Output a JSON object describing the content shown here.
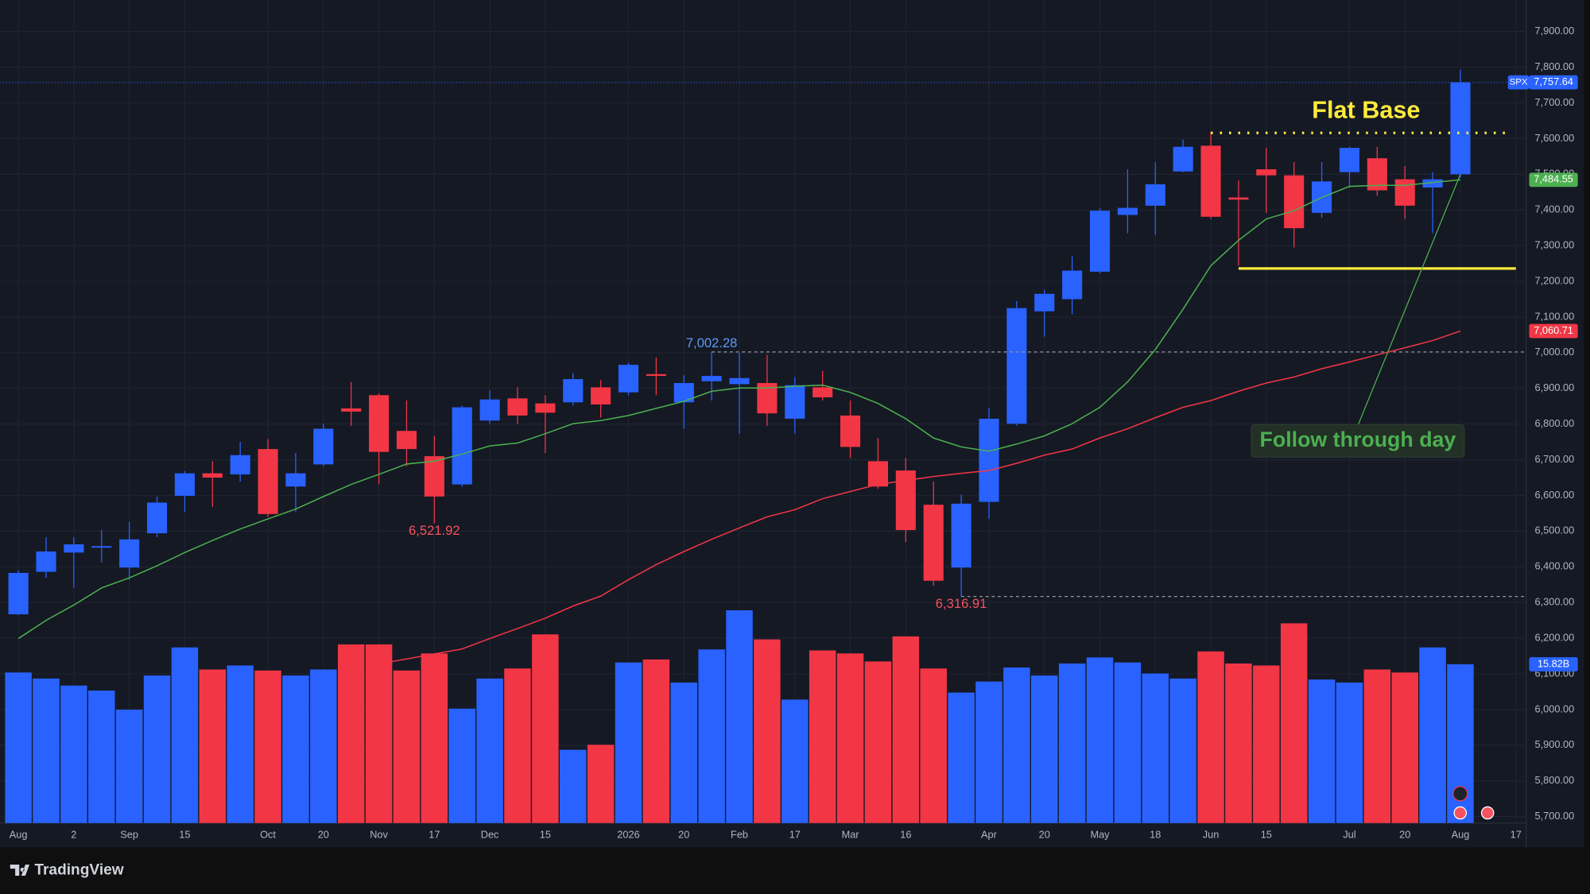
{
  "brand": "TradingView",
  "chart_data": {
    "type": "candlestick",
    "symbol": "SPX",
    "up_color": "#2962ff",
    "down_color": "#f23645",
    "open": [
      6267,
      6386,
      6440,
      6455,
      6398,
      6494,
      6599,
      6662,
      6659,
      6730,
      6625,
      6687,
      6844,
      6881,
      6781,
      6710,
      6631,
      6810,
      6872,
      6858,
      6861,
      6903,
      6889,
      6940,
      6861,
      6920,
      6912,
      6915,
      6815,
      6903,
      6824,
      6696,
      6670,
      6574,
      6398,
      6582,
      6801,
      7116,
      7150,
      7227,
      7386,
      7412,
      7508,
      7580,
      7435,
      7514,
      7497,
      7392,
      7506,
      7545,
      7486,
      7463,
      7500
    ],
    "high": [
      6390,
      6483,
      6483,
      6503,
      6526,
      6597,
      6668,
      6696,
      6750,
      6758,
      6719,
      6801,
      6918,
      6886,
      6866,
      6767,
      6852,
      6895,
      6903,
      6881,
      6943,
      6923,
      6972,
      6986,
      6937,
      7002.28,
      7000,
      6994,
      6932,
      6949,
      6866,
      6761,
      6705,
      6639,
      6602,
      6844,
      7145,
      7176,
      7270,
      7406,
      7514,
      7534,
      7597,
      7619,
      7483,
      7574,
      7534,
      7534,
      7577,
      7577,
      7523,
      7506,
      7793
    ],
    "low": [
      6265,
      6369,
      6341,
      6412,
      6364,
      6483,
      6554,
      6568,
      6639,
      6540,
      6554,
      6682,
      6795,
      6631,
      6682,
      6521.92,
      6625,
      6801,
      6801,
      6719,
      6852,
      6818,
      6881,
      6881,
      6787,
      6866,
      6773,
      6795,
      6773,
      6866,
      6705,
      6619,
      6469,
      6347,
      6316.91,
      6534,
      6795,
      7045,
      7108,
      7222,
      7335,
      7330,
      7506,
      7375,
      7244,
      7392,
      7295,
      7378,
      7463,
      7440,
      7375,
      7335,
      7491
    ],
    "close": [
      6383,
      6443,
      6463,
      6458,
      6477,
      6580,
      6662,
      6650,
      6713,
      6548,
      6662,
      6787,
      6835,
      6722,
      6730,
      6597,
      6847,
      6869,
      6824,
      6832,
      6926,
      6855,
      6966,
      6935,
      6915,
      6935,
      6929,
      6830,
      6909,
      6875,
      6736,
      6625,
      6503,
      6361,
      6577,
      6815,
      7125,
      7165,
      7230,
      7398,
      7406,
      7472,
      7577,
      7381,
      7429,
      7497,
      7349,
      7480,
      7574,
      7455,
      7412,
      7486,
      7757.64
    ],
    "last_price_label": "7,757.64",
    "volume": [
      15.0,
      14.4,
      13.7,
      13.2,
      11.3,
      14.7,
      17.5,
      15.3,
      15.7,
      15.2,
      14.7,
      15.3,
      17.8,
      17.8,
      15.2,
      16.9,
      11.4,
      14.4,
      15.4,
      18.8,
      7.3,
      7.8,
      16.0,
      16.3,
      14.0,
      17.3,
      21.2,
      18.3,
      12.3,
      17.2,
      16.9,
      16.1,
      18.6,
      15.4,
      13.0,
      14.1,
      15.5,
      14.7,
      15.9,
      16.5,
      16.0,
      14.9,
      14.4,
      17.1,
      15.9,
      15.7,
      19.9,
      14.3,
      14.0,
      15.3,
      15.0,
      17.5,
      15.82
    ],
    "volume_label": "15.82B",
    "vlim": [
      0,
      81
    ],
    "moving_averages": [
      {
        "color": "#4caf50",
        "last_label": "7,484.55",
        "values": [
          6199,
          6250,
          6293,
          6341,
          6369,
          6403,
          6440,
          6474,
          6506,
          6534,
          6562,
          6597,
          6631,
          6659,
          6688,
          6696,
          6716,
          6739,
          6747,
          6773,
          6801,
          6810,
          6824,
          6844,
          6864,
          6892,
          6901,
          6901,
          6906,
          6909,
          6889,
          6858,
          6815,
          6761,
          6736,
          6724,
          6744,
          6767,
          6801,
          6847,
          6918,
          7009,
          7122,
          7244,
          7315,
          7375,
          7398,
          7435,
          7466,
          7469,
          7469,
          7477,
          7484.55
        ]
      },
      {
        "color": "#f23645",
        "last_label": "7,060.71",
        "values": [
          null,
          null,
          null,
          null,
          null,
          null,
          null,
          null,
          null,
          null,
          null,
          null,
          null,
          6128,
          6142,
          6156,
          6170,
          6199,
          6227,
          6256,
          6290,
          6318,
          6364,
          6406,
          6443,
          6477,
          6509,
          6540,
          6560,
          6591,
          6611,
          6631,
          6642,
          6653,
          6662,
          6670,
          6690,
          6713,
          6730,
          6761,
          6787,
          6818,
          6847,
          6866,
          6892,
          6915,
          6932,
          6955,
          6974,
          6994,
          7014,
          7034,
          7060.71
        ]
      }
    ],
    "price_labels": [
      {
        "label": "7,002.28",
        "value": 7002.28,
        "x": 25,
        "color": "#5b9cf6",
        "line": true
      },
      {
        "label": "6,521.92",
        "value": 6521.92,
        "x": 15,
        "color": "#f7525f",
        "line": false
      },
      {
        "label": "6,316.91",
        "value": 6316.91,
        "x": 34,
        "color": "#f7525f",
        "line": true
      }
    ],
    "flat_base": {
      "text": "Flat Base",
      "color": "#ffeb3b",
      "top": 7616,
      "bottom": 7236
    },
    "follow_through": {
      "text": "Follow through day",
      "color": "#4caf50",
      "x": 52
    },
    "xlim": [
      -0.37,
      54.37
    ],
    "ylim": [
      5682,
      7960
    ],
    "yticks": [
      {
        "value": 5700,
        "label": "5,700.00"
      },
      {
        "value": 5800,
        "label": "5,800.00"
      },
      {
        "value": 5900,
        "label": "5,900.00"
      },
      {
        "value": 6000,
        "label": "6,000.00"
      },
      {
        "value": 6100,
        "label": "6,100.00"
      },
      {
        "value": 6200,
        "label": "6,200.00"
      },
      {
        "value": 6300,
        "label": "6,300.00"
      },
      {
        "value": 6400,
        "label": "6,400.00"
      },
      {
        "value": 6500,
        "label": "6,500.00"
      },
      {
        "value": 6600,
        "label": "6,600.00"
      },
      {
        "value": 6700,
        "label": "6,700.00"
      },
      {
        "value": 6800,
        "label": "6,800.00"
      },
      {
        "value": 6900,
        "label": "6,900.00"
      },
      {
        "value": 7000,
        "label": "7,000.00"
      },
      {
        "value": 7100,
        "label": "7,100.00"
      },
      {
        "value": 7200,
        "label": "7,200.00"
      },
      {
        "value": 7300,
        "label": "7,300.00"
      },
      {
        "value": 7400,
        "label": "7,400.00"
      },
      {
        "value": 7500,
        "label": "7,500.00"
      },
      {
        "value": 7600,
        "label": "7,600.00"
      },
      {
        "value": 7700,
        "label": "7,700.00"
      },
      {
        "value": 7800,
        "label": "7,800.00"
      },
      {
        "value": 7900,
        "label": "7,900.00"
      }
    ],
    "xticks": [
      {
        "value": 0,
        "label": "Aug"
      },
      2,
      {
        "value": 4,
        "label": "Sep"
      },
      {
        "value": 6,
        "label": "15"
      },
      {
        "value": 9,
        "label": "Oct"
      },
      {
        "value": 11,
        "label": "20"
      },
      {
        "value": 13,
        "label": "Nov"
      },
      {
        "value": 15,
        "label": "17"
      },
      {
        "value": 17,
        "label": "Dec"
      },
      {
        "value": 19,
        "label": "15"
      },
      {
        "value": 22,
        "label": "2026"
      },
      {
        "value": 24,
        "label": "20"
      },
      {
        "value": 26,
        "label": "Feb"
      },
      {
        "value": 28,
        "label": "17"
      },
      {
        "value": 30,
        "label": "Mar"
      },
      {
        "value": 32,
        "label": "16"
      },
      {
        "value": 35,
        "label": "Apr"
      },
      {
        "value": 37,
        "label": "20"
      },
      {
        "value": 39,
        "label": "May"
      },
      {
        "value": 41,
        "label": "18"
      },
      {
        "value": 43,
        "label": "Jun"
      },
      {
        "value": 45,
        "label": "15"
      },
      {
        "value": 48,
        "label": "Jul"
      },
      {
        "value": 50,
        "label": "20"
      },
      {
        "value": 52,
        "label": "Aug"
      },
      {
        "value": 54,
        "label": "17"
      }
    ],
    "grid": true
  }
}
